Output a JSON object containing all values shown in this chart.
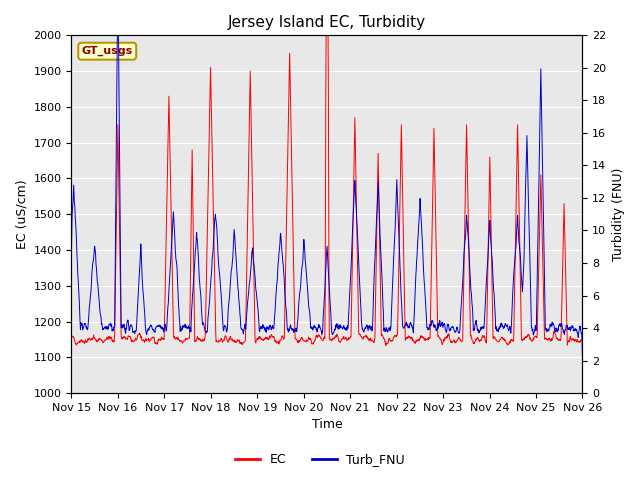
{
  "title": "Jersey Island EC, Turbidity",
  "xlabel": "Time",
  "ylabel_left": "EC (uS/cm)",
  "ylabel_right": "Turbidity (FNU)",
  "ylim_left": [
    1000,
    2000
  ],
  "ylim_right": [
    0,
    22
  ],
  "yticks_left": [
    1000,
    1100,
    1200,
    1300,
    1400,
    1500,
    1600,
    1700,
    1800,
    1900,
    2000
  ],
  "yticks_right": [
    0,
    2,
    4,
    6,
    8,
    10,
    12,
    14,
    16,
    18,
    20,
    22
  ],
  "xtick_labels": [
    "Nov 15",
    "Nov 16",
    "Nov 17",
    "Nov 18",
    "Nov 19",
    "Nov 20",
    "Nov 21",
    "Nov 22",
    "Nov 23",
    "Nov 24",
    "Nov 25",
    "Nov 26"
  ],
  "ec_color": "#ff0000",
  "turb_color": "#0000cc",
  "fig_bg": "#ffffff",
  "plot_bg": "#e8e8e8",
  "gt_label": "GT_usgs",
  "legend_labels": [
    "EC",
    "Turb_FNU"
  ],
  "legend_colors": [
    "#ff0000",
    "#0000cc"
  ],
  "title_fontsize": 11,
  "axis_label_fontsize": 9,
  "tick_fontsize": 8
}
